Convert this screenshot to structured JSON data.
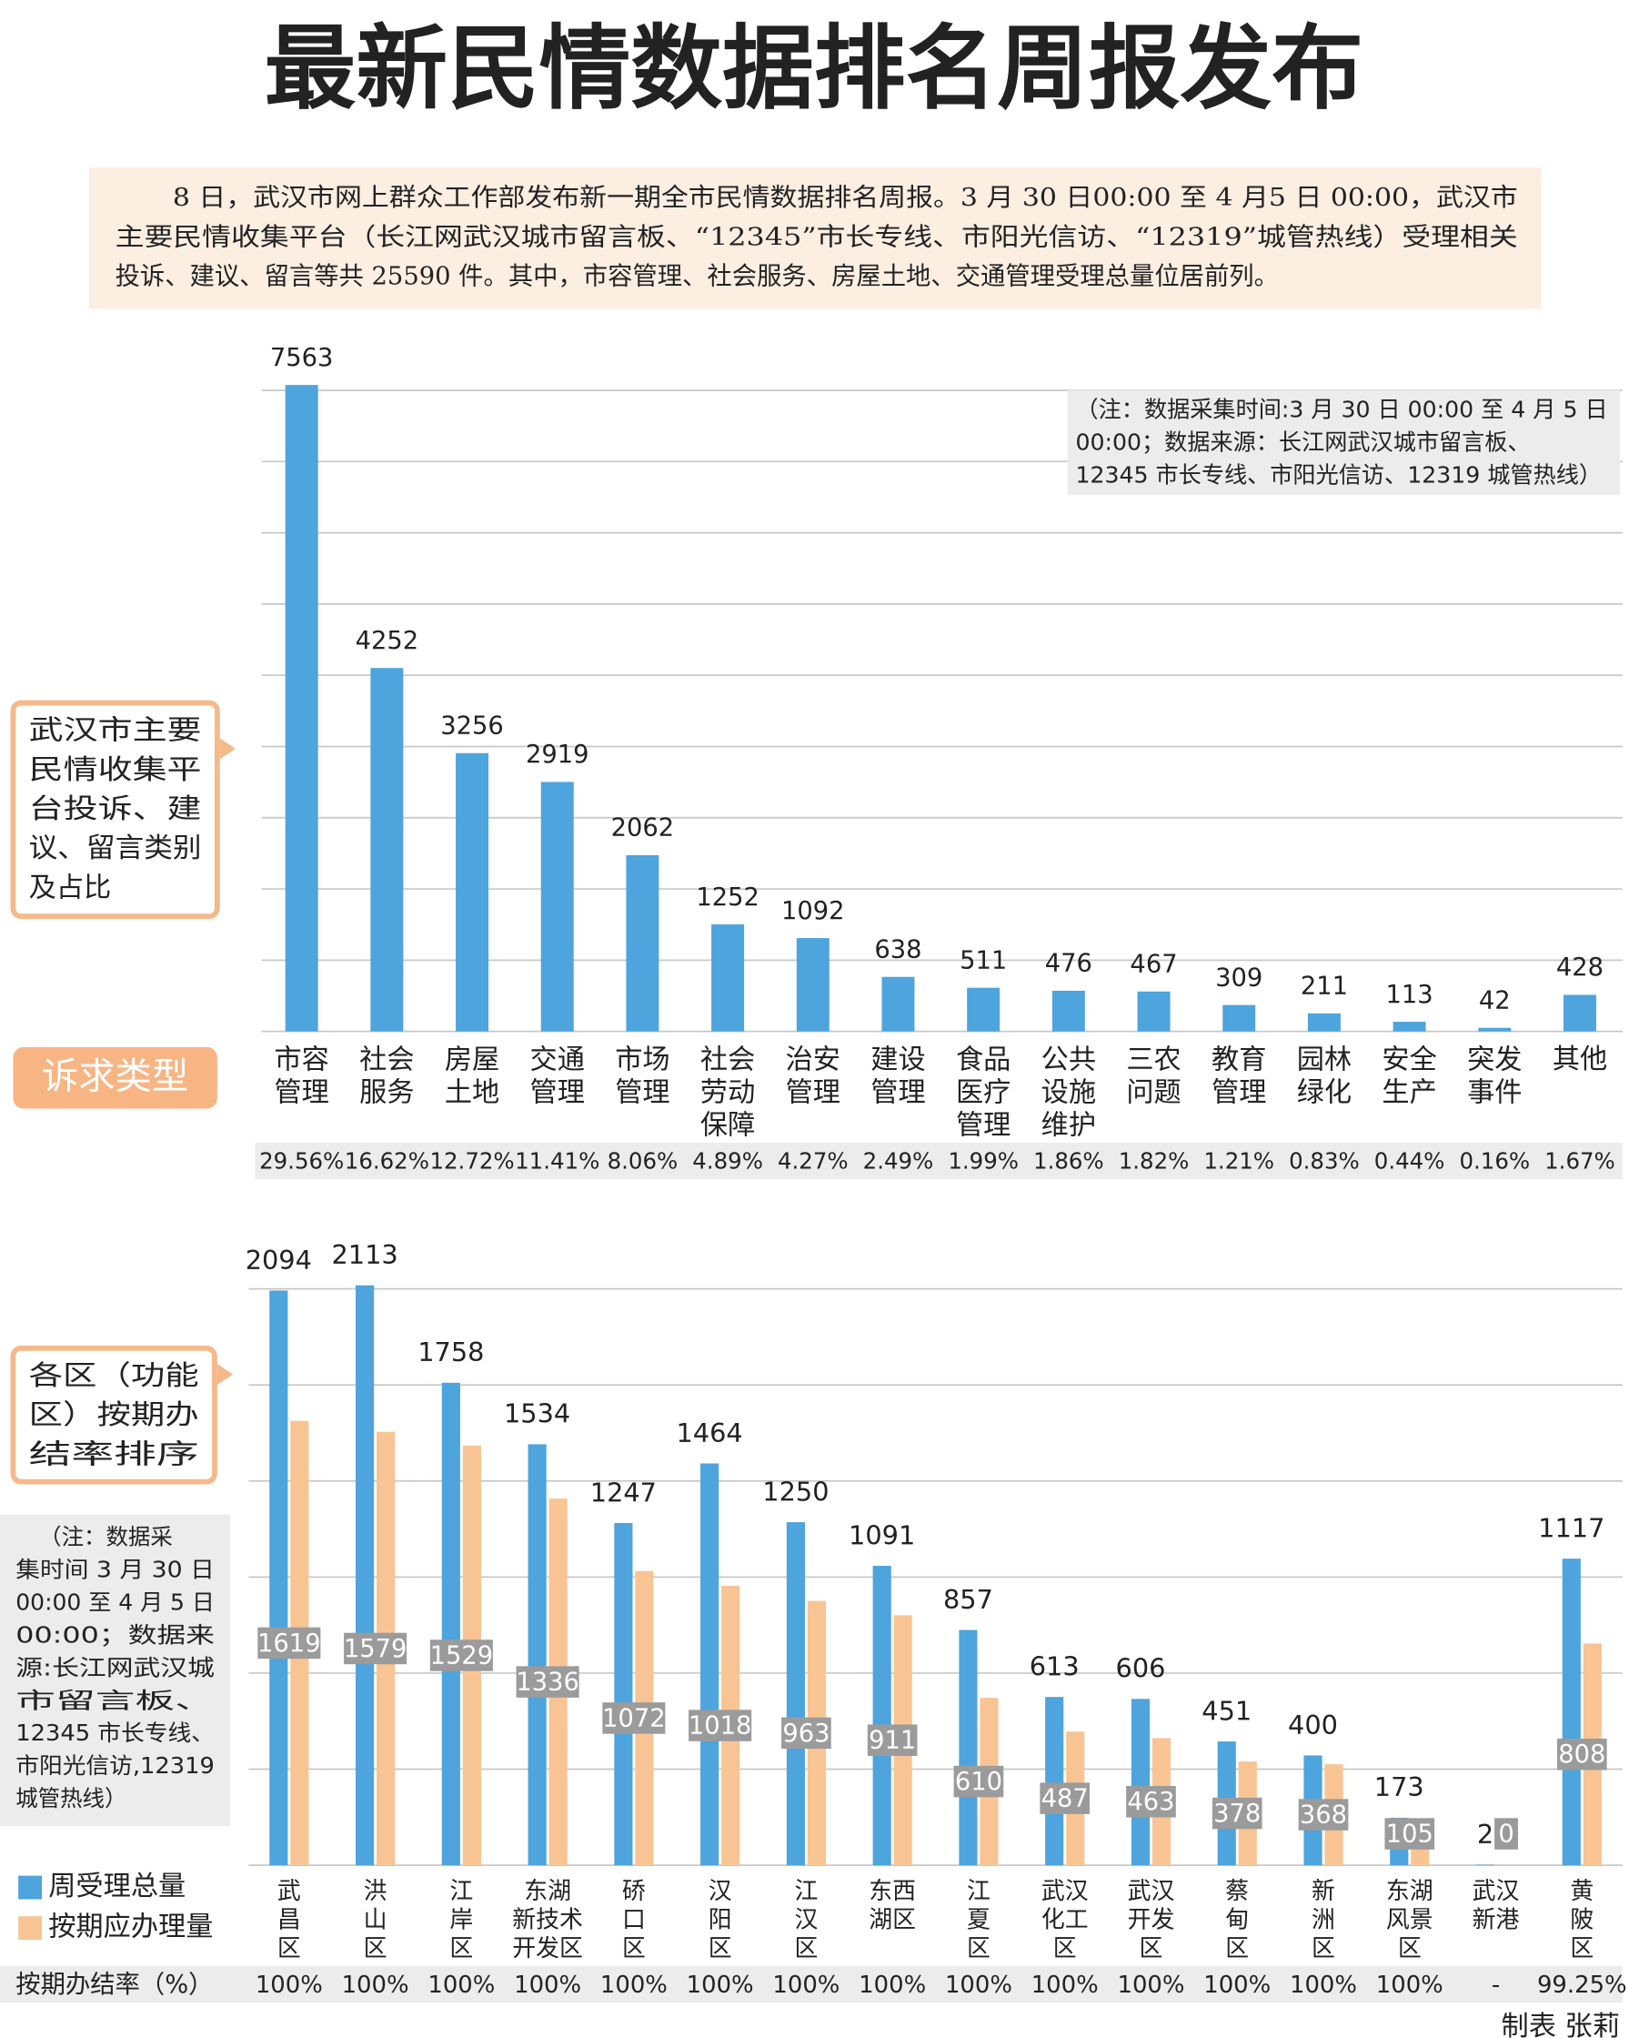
{
  "title": "最新民情数据排名周报发布",
  "intro": [
    "8 日，武汉市网上群众工作部发布新一期全市民情数据排名周报。3 月 30 日00:00 至 4 月5 日 00:00，武汉市",
    "主要民情收集平台（长江网武汉城市留言板、“12345”市长专线、市阳光信访、“12319”城管热线）受理相关",
    "投诉、建议、留言等共 25590 件。其中，市容管理、社会服务、房屋土地、交通管理受理总量位居前列。"
  ],
  "credit": "制表 张莉",
  "chart_data": [
    {
      "type": "bar",
      "title": [
        "武汉市主要",
        "民情收集平",
        "台投诉、建",
        "议、留言类别",
        "及占比"
      ],
      "x_label": "诉求类型",
      "note": [
        "（注：数据采集时间:3 月 30 日 00:00 至 4 月 5 日",
        "00:00；数据来源：长江网武汉城市留言板、",
        "12345 市长专线、市阳光信访、12319 城管热线）"
      ],
      "categories": [
        "市容\n管理",
        "社会\n服务",
        "房屋\n土地",
        "交通\n管理",
        "市场\n管理",
        "社会\n劳动\n保障",
        "治安\n管理",
        "建设\n管理",
        "食品\n医疗\n管理",
        "公共\n设施\n维护",
        "三农\n问题",
        "教育\n管理",
        "园林\n绿化",
        "安全\n生产",
        "突发\n事件",
        "其他"
      ],
      "values": [
        7563,
        4252,
        3256,
        2919,
        2062,
        1252,
        1092,
        638,
        511,
        476,
        467,
        309,
        211,
        113,
        42,
        428
      ],
      "shares": [
        "29.56%",
        "16.62%",
        "12.72%",
        "11.41%",
        "8.06%",
        "4.89%",
        "4.27%",
        "2.49%",
        "1.99%",
        "1.86%",
        "1.82%",
        "1.21%",
        "0.83%",
        "0.44%",
        "0.16%",
        "1.67%"
      ],
      "color": "#4ea4dc",
      "ylim": [
        0,
        7580
      ],
      "yticks": [
        0,
        833,
        1667,
        2500,
        3333,
        4167,
        5000,
        5833,
        6667,
        7500
      ],
      "grid": true
    },
    {
      "type": "grouped_bar",
      "title": [
        "各区（功能",
        "区）按期办",
        "结率排序"
      ],
      "note": [
        "（注：数据采",
        "集时间 3 月 30 日",
        "00:00 至 4 月 5 日",
        "00:00；数据来",
        "源:长江网武汉城",
        "市留言板、",
        "12345 市长专线、",
        "市阳光信访,12319",
        "城管热线）"
      ],
      "categories": [
        "武\n昌\n区",
        "洪\n山\n区",
        "江\n岸\n区",
        "东湖\n新技术\n开发区",
        "硚\n口\n区",
        "汉\n阳\n区",
        "江\n汉\n区",
        "东西\n湖区",
        "江\n夏\n区",
        "武汉\n化工\n区",
        "武汉\n开发\n区",
        "蔡\n甸\n区",
        "新\n洲\n区",
        "东湖\n风景\n区",
        "武汉\n新港",
        "黄\n陂\n区"
      ],
      "series": [
        {
          "name": "周受理总量",
          "color": "#4ea4dc",
          "values": [
            2094,
            2113,
            1758,
            1534,
            1247,
            1464,
            1250,
            1091,
            857,
            613,
            606,
            451,
            400,
            173,
            2,
            1117
          ]
        },
        {
          "name": "按期应办理量",
          "color": "#f9c494",
          "values": [
            1619,
            1579,
            1529,
            1336,
            1072,
            1018,
            963,
            911,
            610,
            487,
            463,
            378,
            368,
            105,
            0,
            808
          ]
        }
      ],
      "rate_label": "按期办结率（%）",
      "rates": [
        "100%",
        "100%",
        "100%",
        "100%",
        "100%",
        "100%",
        "100%",
        "100%",
        "100%",
        "100%",
        "100%",
        "100%",
        "100%",
        "100%",
        "-",
        "99.25%"
      ],
      "ylim": [
        0,
        2120
      ],
      "yticks": [
        0,
        350,
        700,
        1050,
        1400,
        1750,
        2100
      ],
      "grid": true,
      "legend": "bottom-left"
    }
  ]
}
